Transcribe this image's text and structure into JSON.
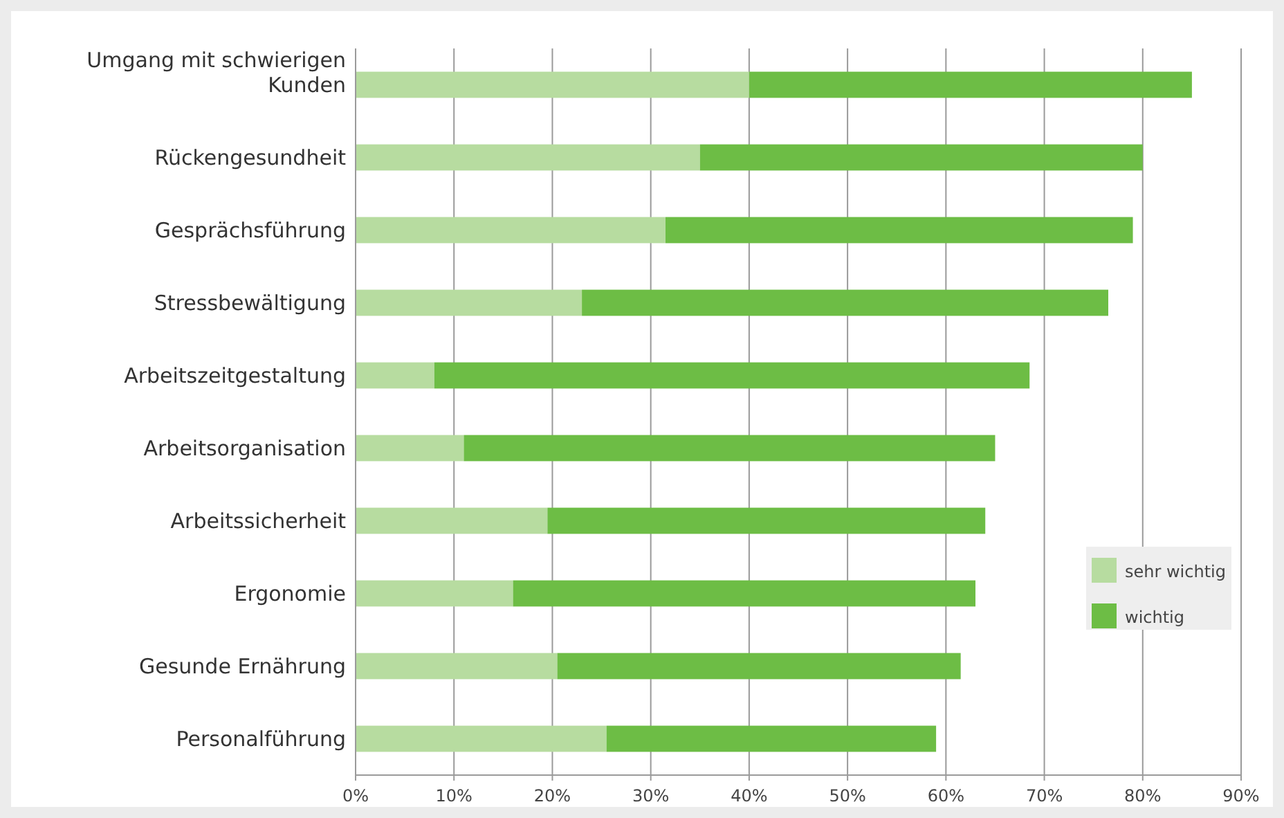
{
  "chart_data": {
    "type": "bar",
    "orientation": "horizontal",
    "stacked": true,
    "categories": [
      "Umgang mit schwierigen Kunden",
      "Rückengesundheit",
      "Gesprächsführung",
      "Stressbewältigung",
      "Arbeitszeitgestaltung",
      "Arbeitsorganisation",
      "Arbeitssicherheit",
      "Ergonomie",
      "Gesunde Ernährung",
      "Personalführung"
    ],
    "series": [
      {
        "name": "sehr wichtig",
        "color": "#b7dca0",
        "values": [
          40,
          35,
          31.5,
          23,
          8,
          11,
          19.5,
          16,
          20.5,
          25.5
        ]
      },
      {
        "name": "wichtig",
        "color": "#6dbd45",
        "values": [
          45,
          45,
          47.5,
          53.5,
          60.5,
          54,
          44.5,
          47,
          41,
          33.5
        ]
      }
    ],
    "xlim": [
      0,
      90
    ],
    "xticks": [
      {
        "value": 0,
        "label": "0%"
      },
      {
        "value": 10,
        "label": "10%"
      },
      {
        "value": 20,
        "label": "20%"
      },
      {
        "value": 30,
        "label": "30%"
      },
      {
        "value": 40,
        "label": "40%"
      },
      {
        "value": 50,
        "label": "50%"
      },
      {
        "value": 60,
        "label": "60%"
      },
      {
        "value": 70,
        "label": "70%"
      },
      {
        "value": 80,
        "label": "80%"
      },
      {
        "value": 90,
        "label": "90%"
      }
    ],
    "grid": "x",
    "legend": "right"
  }
}
